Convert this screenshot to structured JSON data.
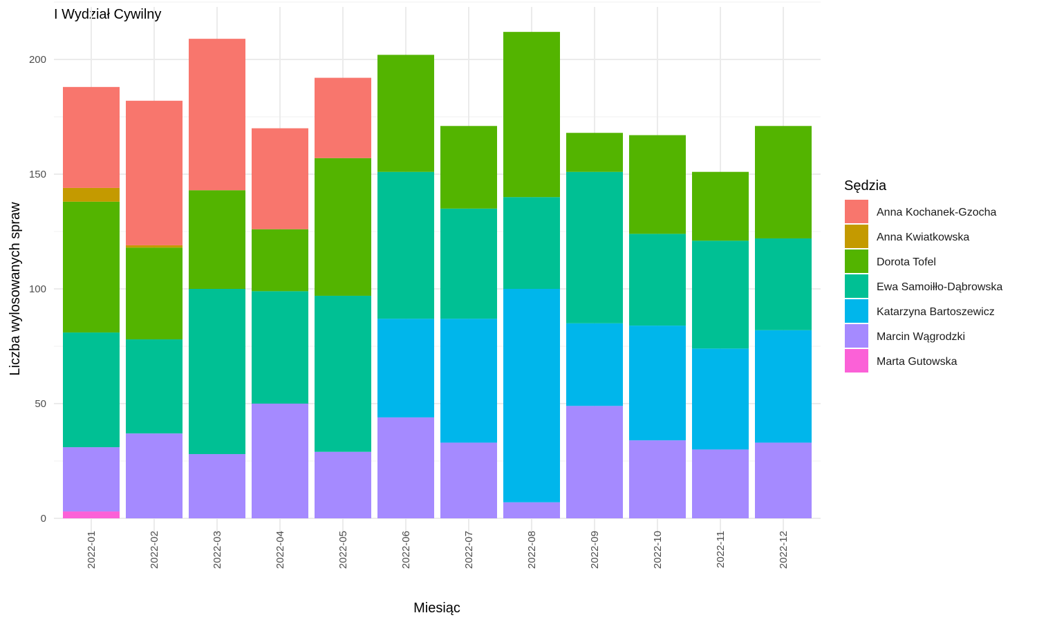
{
  "chart_data": {
    "type": "bar",
    "stacked": true,
    "title": "I Wydział Cywilny",
    "xlabel": "Miesiąc",
    "ylabel": "Liczba wylosowanych spraw",
    "ylim": [
      0,
      220
    ],
    "yticks": [
      0,
      50,
      100,
      150,
      200
    ],
    "grid": true,
    "legend_title": "Sędzia",
    "legend_position": "right",
    "categories": [
      "2022-01",
      "2022-02",
      "2022-03",
      "2022-04",
      "2022-05",
      "2022-06",
      "2022-07",
      "2022-08",
      "2022-09",
      "2022-10",
      "2022-11",
      "2022-12"
    ],
    "series": [
      {
        "name": "Anna Kochanek-Gzocha",
        "color": "#F8766D",
        "values": [
          44,
          63,
          66,
          44,
          35,
          0,
          0,
          0,
          0,
          0,
          0,
          0
        ]
      },
      {
        "name": "Anna Kwiatkowska",
        "color": "#C49A00",
        "values": [
          6,
          1,
          0,
          0,
          0,
          0,
          0,
          0,
          0,
          0,
          0,
          0
        ]
      },
      {
        "name": "Dorota Tofel",
        "color": "#53B400",
        "values": [
          57,
          40,
          43,
          27,
          60,
          51,
          36,
          72,
          17,
          43,
          30,
          49
        ]
      },
      {
        "name": "Ewa Samoiłło-Dąbrowska",
        "color": "#00C094",
        "values": [
          50,
          41,
          72,
          49,
          68,
          64,
          48,
          40,
          66,
          40,
          47,
          40
        ]
      },
      {
        "name": "Katarzyna Bartoszewicz",
        "color": "#00B6EB",
        "values": [
          0,
          0,
          0,
          0,
          0,
          43,
          54,
          93,
          36,
          50,
          44,
          49
        ]
      },
      {
        "name": "Marcin Wągrodzki",
        "color": "#A58AFF",
        "values": [
          28,
          37,
          28,
          50,
          29,
          44,
          33,
          7,
          49,
          34,
          30,
          33
        ]
      },
      {
        "name": "Marta Gutowska",
        "color": "#FB61D7",
        "values": [
          3,
          0,
          0,
          0,
          0,
          0,
          0,
          0,
          0,
          0,
          0,
          0
        ]
      }
    ]
  }
}
